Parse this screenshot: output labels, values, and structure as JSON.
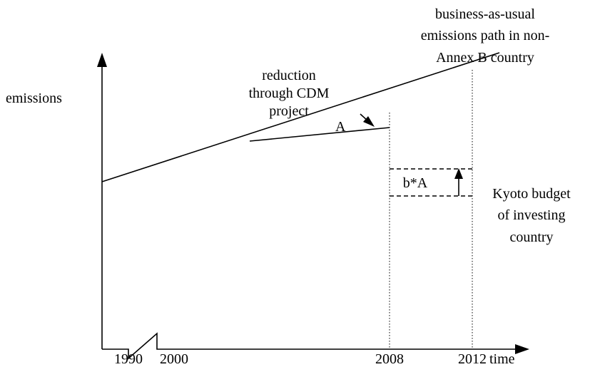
{
  "y_axis_label": "emissions",
  "x_axis_label": "time",
  "x_ticks": [
    "1990",
    "2000",
    "2008",
    "2012"
  ],
  "annotations": {
    "bau": [
      "business-as-usual",
      "emissions path in non-",
      "Annex B country"
    ],
    "cdm": [
      "reduction",
      "through CDM",
      "project"
    ],
    "kyoto": [
      "Kyoto budget",
      "of investing",
      "country"
    ],
    "area": "A",
    "credit": "b*A"
  }
}
